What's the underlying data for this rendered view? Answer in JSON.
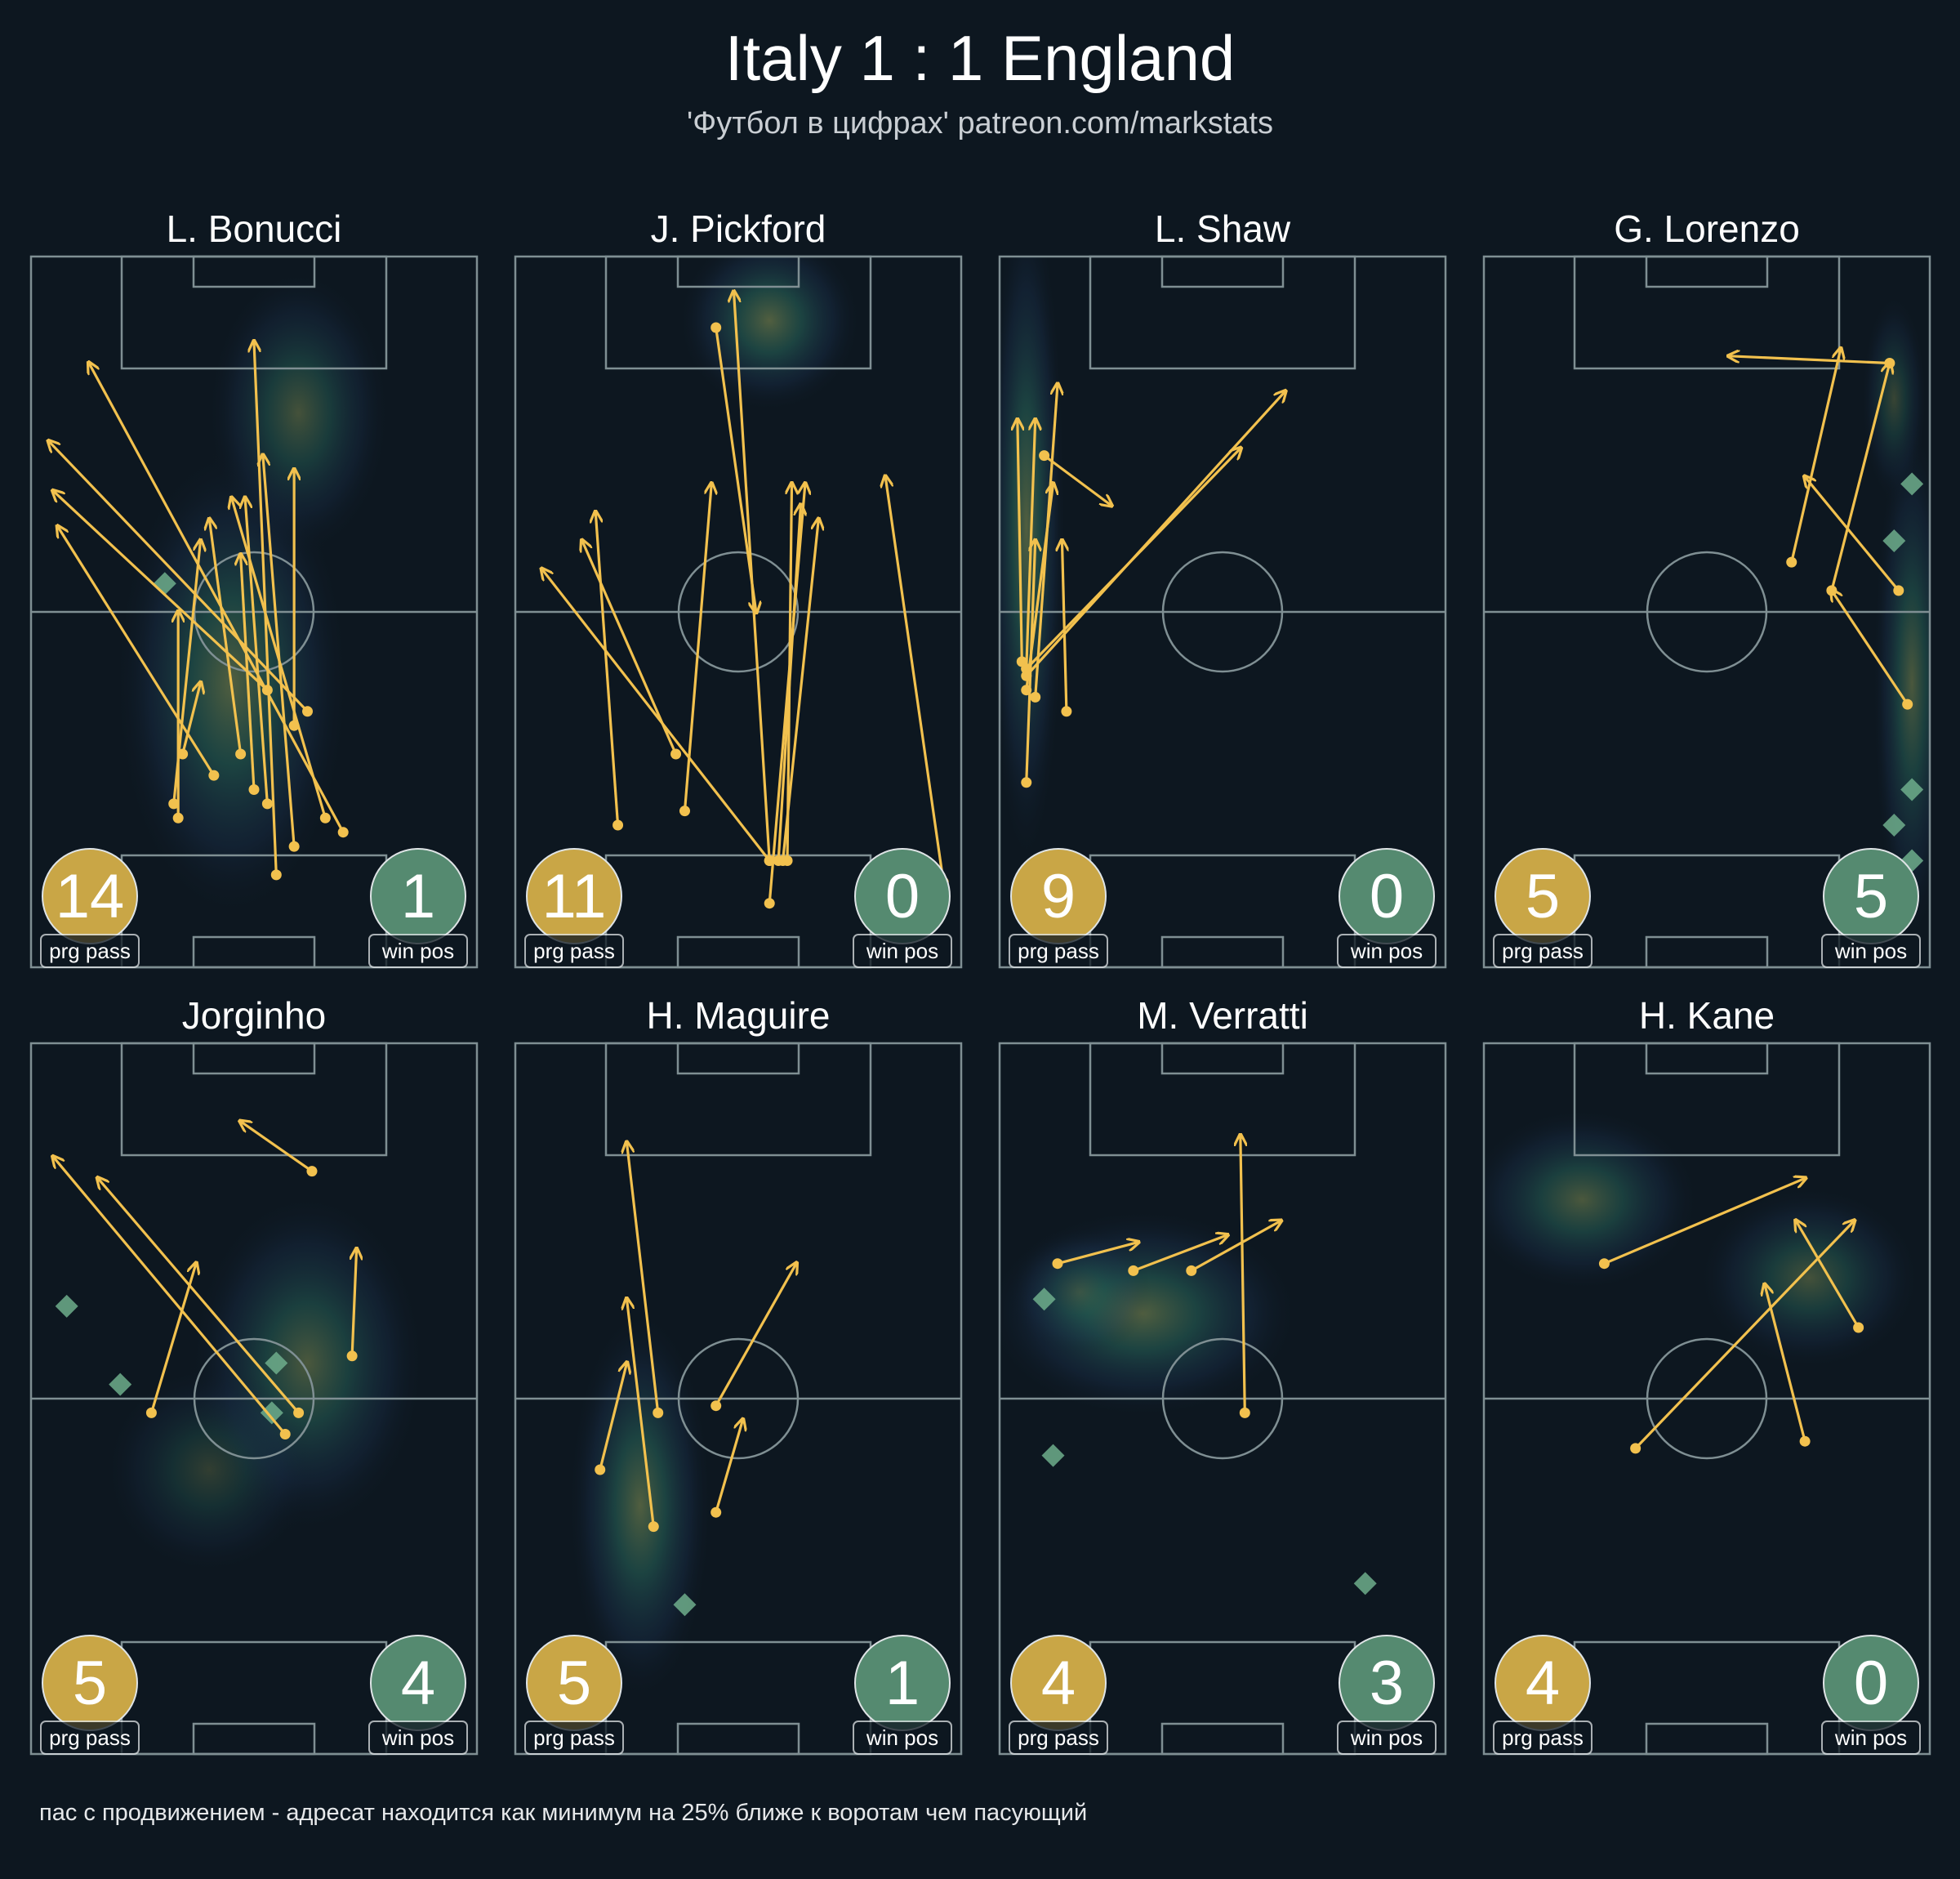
{
  "title": "Italy 1 : 1 England",
  "subtitle": "'Футбол в цифрах' patreon.com/markstats",
  "footnote": "пас с продвижением - адресат находится как минимум на 25% ближе к воротам чем пасующий",
  "colors": {
    "background": "#0d1720",
    "pass": "#f2c14e",
    "prg_badge": "#c9a646",
    "win_badge": "#558a70",
    "win_marker": "#6fae8c",
    "pitch_line": "#7f8f93"
  },
  "chart_data": {
    "type": "scatter",
    "pitch": {
      "length": 100,
      "width": 100
    },
    "panels": [
      {
        "player": "L. Bonucci",
        "prg_pass": {
          "value": "14",
          "label": "prg pass"
        },
        "win_pos": {
          "value": "1",
          "label": "win pos"
        },
        "passes": [
          [
            55,
            13,
            50,
            88
          ],
          [
            59,
            17,
            52,
            72
          ],
          [
            53,
            23,
            48,
            66
          ],
          [
            50,
            25,
            47,
            58
          ],
          [
            47,
            30,
            40,
            63
          ],
          [
            41,
            27,
            6,
            62
          ],
          [
            53,
            39,
            5,
            67
          ],
          [
            62,
            36,
            4,
            74
          ],
          [
            70,
            19,
            13,
            85
          ],
          [
            66,
            21,
            45,
            66
          ],
          [
            34,
            30,
            38,
            40
          ],
          [
            59,
            34,
            59,
            70
          ],
          [
            33,
            21,
            33,
            50
          ],
          [
            32,
            23,
            38,
            60
          ]
        ],
        "win_markers": [
          [
            30,
            54
          ]
        ],
        "heat": [
          [
            45,
            40,
            90,
            180,
            0.55
          ],
          [
            60,
            78,
            70,
            110,
            0.45
          ]
        ]
      },
      {
        "player": "J. Pickford",
        "prg_pass": {
          "value": "11",
          "label": "prg pass"
        },
        "win_pos": {
          "value": "0",
          "label": "win pos"
        },
        "passes": [
          [
            57,
            15,
            49,
            95
          ],
          [
            59,
            15,
            64,
            65
          ],
          [
            60,
            15,
            68,
            63
          ],
          [
            61,
            15,
            62,
            68
          ],
          [
            57,
            9,
            65,
            68
          ],
          [
            23,
            20,
            18,
            64
          ],
          [
            38,
            22,
            44,
            68
          ],
          [
            36,
            30,
            15,
            60
          ],
          [
            45,
            90,
            54,
            50
          ],
          [
            96,
            12,
            83,
            69
          ],
          [
            57,
            15,
            6,
            56
          ]
        ],
        "win_markers": [],
        "heat": [
          [
            57,
            91,
            70,
            70,
            0.6
          ]
        ]
      },
      {
        "player": "L. Shaw",
        "prg_pass": {
          "value": "9",
          "label": "prg pass"
        },
        "win_pos": {
          "value": "0",
          "label": "win pos"
        },
        "passes": [
          [
            6,
            42,
            8,
            77
          ],
          [
            8,
            38,
            13,
            82
          ],
          [
            6,
            26,
            8,
            60
          ],
          [
            15,
            36,
            14,
            60
          ],
          [
            6,
            39,
            12,
            68
          ],
          [
            5,
            43,
            4,
            77
          ],
          [
            10,
            72,
            25,
            65
          ],
          [
            6,
            41,
            64,
            81
          ],
          [
            6,
            42,
            54,
            73
          ]
        ],
        "win_markers": [],
        "heat": [
          [
            6,
            62,
            30,
            260,
            0.55
          ]
        ]
      },
      {
        "player": "G. Lorenzo",
        "prg_pass": {
          "value": "5",
          "label": "prg pass"
        },
        "win_pos": {
          "value": "5",
          "label": "win pos"
        },
        "passes": [
          [
            69,
            57,
            80,
            87
          ],
          [
            93,
            53,
            72,
            69
          ],
          [
            78,
            53,
            91,
            85
          ],
          [
            91,
            85,
            55,
            86
          ],
          [
            95,
            37,
            78,
            53
          ]
        ],
        "win_markers": [
          [
            96,
            68
          ],
          [
            92,
            60
          ],
          [
            96,
            25
          ],
          [
            92,
            20
          ],
          [
            96,
            15
          ]
        ],
        "heat": [
          [
            96,
            40,
            30,
            200,
            0.5
          ],
          [
            92,
            80,
            25,
            80,
            0.35
          ]
        ]
      },
      {
        "player": "Jorginho",
        "prg_pass": {
          "value": "5",
          "label": "prg pass"
        },
        "win_pos": {
          "value": "4",
          "label": "win pos"
        },
        "passes": [
          [
            27,
            48,
            37,
            69
          ],
          [
            57,
            45,
            5,
            84
          ],
          [
            63,
            82,
            47,
            89
          ],
          [
            72,
            56,
            73,
            71
          ],
          [
            60,
            48,
            15,
            81
          ]
        ],
        "win_markers": [
          [
            8,
            63
          ],
          [
            20,
            52
          ],
          [
            55,
            55
          ],
          [
            54,
            48
          ]
        ],
        "heat": [
          [
            62,
            55,
            90,
            130,
            0.5
          ],
          [
            40,
            40,
            80,
            80,
            0.3
          ]
        ]
      },
      {
        "player": "H. Maguire",
        "prg_pass": {
          "value": "5",
          "label": "prg pass"
        },
        "win_pos": {
          "value": "1",
          "label": "win pos"
        },
        "passes": [
          [
            32,
            48,
            25,
            86
          ],
          [
            31,
            32,
            25,
            64
          ],
          [
            45,
            34,
            51,
            47
          ],
          [
            45,
            49,
            63,
            69
          ],
          [
            19,
            40,
            25,
            55
          ]
        ],
        "win_markers": [
          [
            38,
            21
          ]
        ],
        "heat": [
          [
            28,
            35,
            55,
            150,
            0.55
          ]
        ]
      },
      {
        "player": "M. Verratti",
        "prg_pass": {
          "value": "4",
          "label": "prg pass"
        },
        "win_pos": {
          "value": "3",
          "label": "win pos"
        },
        "passes": [
          [
            43,
            68,
            63,
            75
          ],
          [
            13,
            69,
            31,
            72
          ],
          [
            30,
            68,
            51,
            73
          ],
          [
            55,
            48,
            54,
            87
          ]
        ],
        "win_markers": [
          [
            10,
            64
          ],
          [
            12,
            42
          ],
          [
            82,
            24
          ]
        ],
        "heat": [
          [
            32,
            62,
            120,
            80,
            0.55
          ],
          [
            18,
            65,
            55,
            50,
            0.3
          ]
        ]
      },
      {
        "player": "H. Kane",
        "prg_pass": {
          "value": "4",
          "label": "prg pass"
        },
        "win_pos": {
          "value": "0",
          "label": "win pos"
        },
        "passes": [
          [
            27,
            69,
            72,
            81
          ],
          [
            84,
            60,
            70,
            75
          ],
          [
            72,
            44,
            63,
            66
          ],
          [
            34,
            43,
            83,
            75
          ]
        ],
        "win_markers": [],
        "heat": [
          [
            22,
            78,
            90,
            70,
            0.5
          ],
          [
            73,
            67,
            85,
            70,
            0.45
          ]
        ]
      }
    ]
  }
}
